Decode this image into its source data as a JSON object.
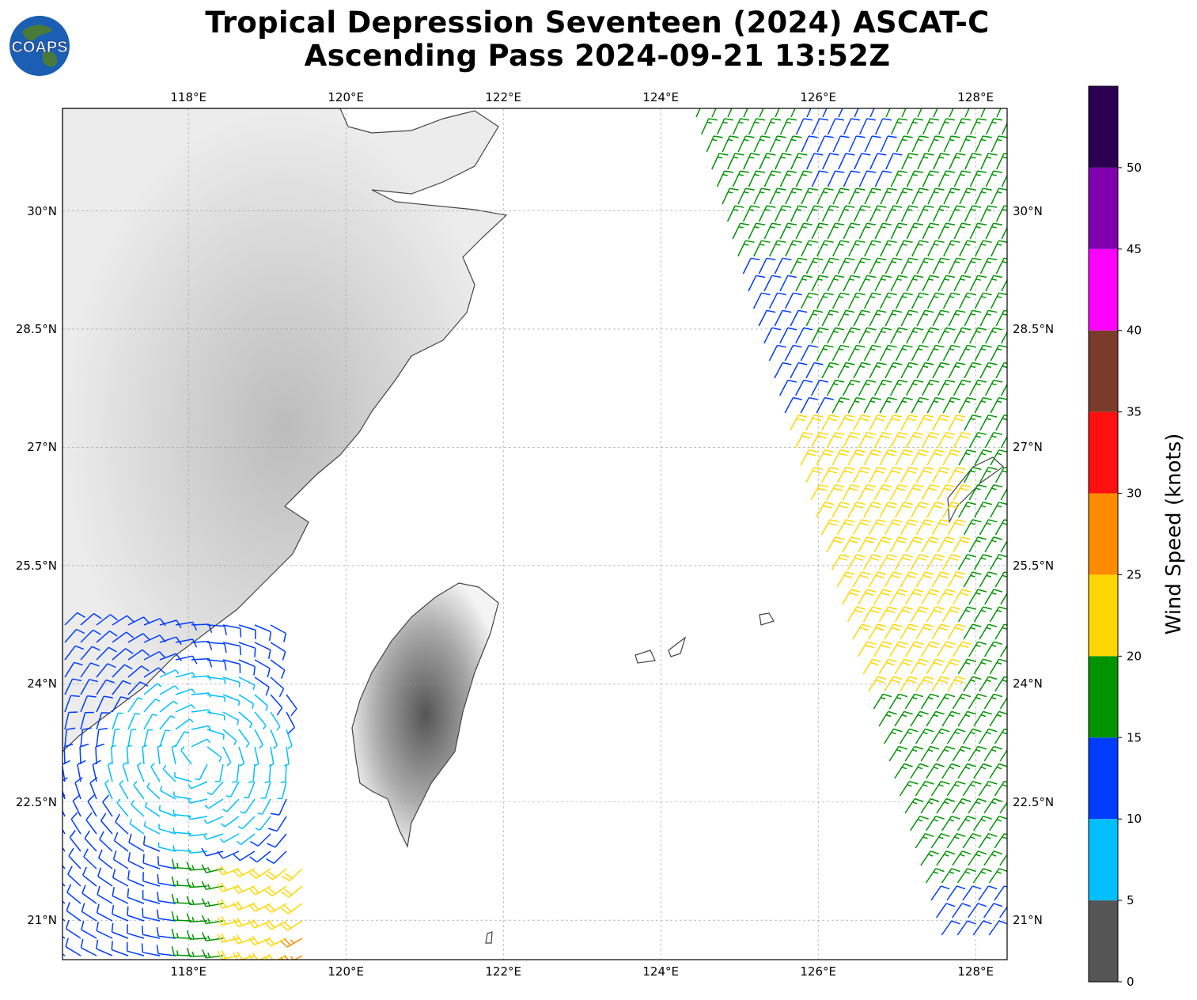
{
  "title": {
    "line1": "Tropical Depression Seventeen (2024) ASCAT-C",
    "line2": "Ascending Pass 2024-09-21 13:52Z"
  },
  "logo": {
    "text": "COAPS"
  },
  "map": {
    "lon_range": [
      116.4,
      128.4
    ],
    "lat_range": [
      20.5,
      31.3
    ],
    "lon_ticks": [
      118,
      120,
      122,
      124,
      126,
      128
    ],
    "lon_tick_labels": [
      "118°E",
      "120°E",
      "122°E",
      "124°E",
      "126°E",
      "128°E"
    ],
    "lat_ticks": [
      21,
      22.5,
      24,
      25.5,
      27,
      28.5,
      30
    ],
    "lat_tick_labels": [
      "21°N",
      "22.5°N",
      "24°N",
      "25.5°N",
      "27°N",
      "28.5°N",
      "30°N"
    ]
  },
  "colorbar": {
    "label": "Wind Speed (knots)",
    "bins": [
      {
        "min": 0,
        "max": 5,
        "color": "#555555"
      },
      {
        "min": 5,
        "max": 10,
        "color": "#00bfff"
      },
      {
        "min": 10,
        "max": 15,
        "color": "#003cff"
      },
      {
        "min": 15,
        "max": 20,
        "color": "#009400"
      },
      {
        "min": 20,
        "max": 25,
        "color": "#ffd700"
      },
      {
        "min": 25,
        "max": 30,
        "color": "#ff8c00"
      },
      {
        "min": 30,
        "max": 35,
        "color": "#ff1010"
      },
      {
        "min": 35,
        "max": 40,
        "color": "#7a3b2a"
      },
      {
        "min": 40,
        "max": 45,
        "color": "#ff00ff"
      },
      {
        "min": 45,
        "max": 50,
        "color": "#8000b0"
      },
      {
        "min": 50,
        "max": 55,
        "color": "#2b0050"
      }
    ],
    "tick_labels": [
      "0",
      "5",
      "10",
      "15",
      "20",
      "25",
      "30",
      "35",
      "40",
      "45",
      "50"
    ]
  }
}
